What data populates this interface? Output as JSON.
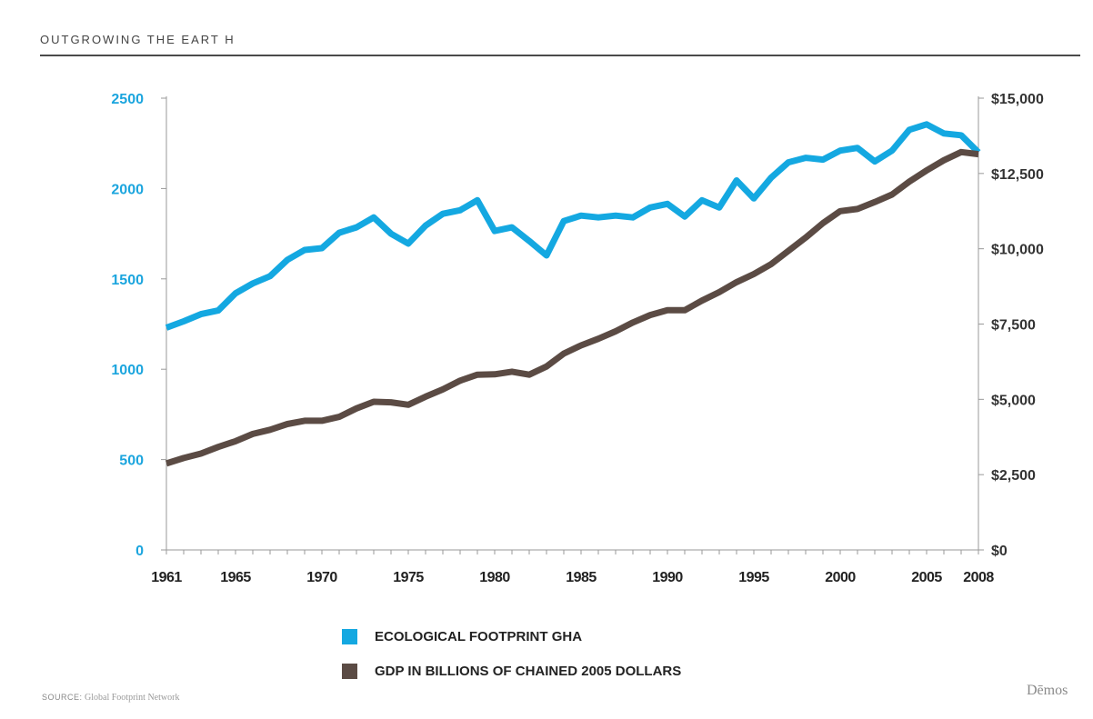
{
  "header": {
    "title": "OUTGROWING THE EART H"
  },
  "footer": {
    "source_label": "SOURCE:",
    "source_text": "Global Footprint Network",
    "brand": "Dēmos"
  },
  "colors": {
    "footprint": "#14a8e1",
    "gdp": "#5b4b44",
    "axis_left": "#1ba5de",
    "axis_right": "#333333"
  },
  "chart_data": {
    "type": "line",
    "x_ticks": [
      "1961",
      "1965",
      "1970",
      "1975",
      "1980",
      "1985",
      "1990",
      "1995",
      "2000",
      "2005",
      "2008"
    ],
    "xlim": [
      1961,
      2008
    ],
    "y_left": {
      "ticks": [
        "0",
        "500",
        "1000",
        "1500",
        "2000",
        "2500"
      ],
      "ylim": [
        0,
        2500
      ]
    },
    "y_right": {
      "ticks": [
        "$0",
        "$2,500",
        "$5,000",
        "$7,500",
        "$10,000",
        "$12,500",
        "$15,000"
      ],
      "ylim": [
        0,
        15000
      ]
    },
    "x": [
      1961,
      1962,
      1963,
      1964,
      1965,
      1966,
      1967,
      1968,
      1969,
      1970,
      1971,
      1972,
      1973,
      1974,
      1975,
      1976,
      1977,
      1978,
      1979,
      1980,
      1981,
      1982,
      1983,
      1984,
      1985,
      1986,
      1987,
      1988,
      1989,
      1990,
      1991,
      1992,
      1993,
      1994,
      1995,
      1996,
      1997,
      1998,
      1999,
      2000,
      2001,
      2002,
      2003,
      2004,
      2005,
      2006,
      2007,
      2008
    ],
    "series": [
      {
        "name": "ECOLOGICAL FOOTPRINT  GHA",
        "axis": "left",
        "values": [
          1230,
          1265,
          1305,
          1325,
          1420,
          1475,
          1515,
          1605,
          1660,
          1670,
          1755,
          1785,
          1840,
          1750,
          1695,
          1795,
          1860,
          1880,
          1935,
          1765,
          1785,
          1710,
          1630,
          1820,
          1850,
          1840,
          1850,
          1840,
          1895,
          1915,
          1845,
          1935,
          1895,
          2045,
          1945,
          2060,
          2145,
          2170,
          2160,
          2210,
          2225,
          2150,
          2210,
          2325,
          2355,
          2305,
          2295,
          2200
        ]
      },
      {
        "name": "GDP IN BILLIONS OF CHAINED 2005 DOLLARS",
        "axis": "right",
        "values": [
          2870,
          3050,
          3200,
          3420,
          3610,
          3850,
          3990,
          4180,
          4290,
          4290,
          4420,
          4700,
          4920,
          4900,
          4820,
          5090,
          5330,
          5620,
          5820,
          5830,
          5920,
          5820,
          6090,
          6520,
          6790,
          7010,
          7260,
          7550,
          7800,
          7960,
          7960,
          8280,
          8560,
          8890,
          9160,
          9490,
          9930,
          10370,
          10850,
          11250,
          11320,
          11550,
          11800,
          12230,
          12600,
          12940,
          13210,
          13140
        ]
      }
    ]
  }
}
